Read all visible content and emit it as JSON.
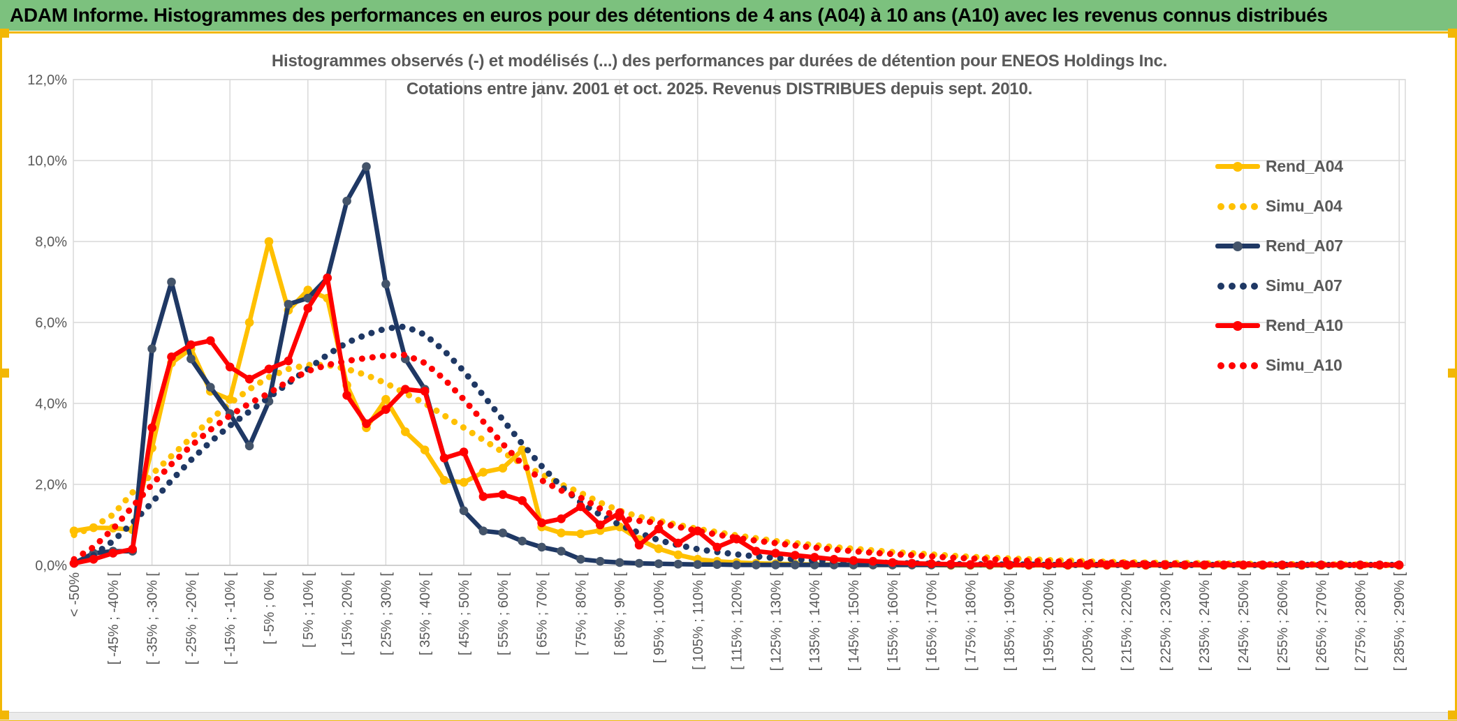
{
  "banner": {
    "title": "ADAM Informe. Histogrammes des performances en euros pour des détentions de 4 ans (A04) à 10 ans (A10) avec les revenus connus distribués"
  },
  "colors": {
    "banner_bg": "#7CC17E",
    "selection_gold": "#F2B705",
    "grid": "#D9D9D9",
    "axis": "#C6C6C6",
    "text_gray": "#595959",
    "strip": "#EBEBEB"
  },
  "chart_data": {
    "type": "line",
    "title_line1": "Histogrammes observés (-) et modélisés (...) des performances par durées de détention pour ENEOS Holdings Inc.",
    "title_line2": "Cotations entre janv. 2001 et oct. 2025. Revenus DISTRIBUES depuis sept. 2010.",
    "ylabel": "",
    "xlabel": "",
    "ylim": [
      0,
      12
    ],
    "grid": true,
    "legend_position": "right-inside",
    "y_tick_labels": [
      "0,0%",
      "2,0%",
      "4,0%",
      "6,0%",
      "8,0%",
      "10,0%",
      "12,0%"
    ],
    "bins_total": 69,
    "x_tick_every": 2,
    "x_tick_labels": [
      "< -50%",
      "[ -45% ; -40% [",
      "[ -35% ; -30% [",
      "[ -25% ; -20% [",
      "[ -15% ; -10% [",
      "[ -5% ; 0% [",
      "[ 5% ; 10% [",
      "[ 15% ; 20% [",
      "[ 25% ; 30% [",
      "[ 35% ; 40% [",
      "[ 45% ; 50% [",
      "[ 55% ; 60% [",
      "[ 65% ; 70% [",
      "[ 75% ; 80% [",
      "[ 85% ; 90% [",
      "[ 95% ; 100% [",
      "[ 105% ; 110% [",
      "[ 115% ; 120% [",
      "[ 125% ; 130% [",
      "[ 135% ; 140% [",
      "[ 145% ; 150% [",
      "[ 155% ; 160% [",
      "[ 165% ; 170% [",
      "[ 175% ; 180% [",
      "[ 185% ; 190% [",
      "[ 195% ; 200% [",
      "[ 205% ; 210% [",
      "[ 215% ; 220% [",
      "[ 225% ; 230% [",
      "[ 235% ; 240% [",
      "[ 245% ; 250% [",
      "[ 255% ; 260% [",
      "[ 265% ; 270% [",
      "[ 275% ; 280% [",
      "[ 285% ; 290% ["
    ],
    "series": [
      {
        "name": "Rend_A04",
        "style": "solid",
        "color": "#FFC000",
        "marker_color": "#FFC000",
        "values": [
          0.85,
          0.93,
          0.92,
          0.88,
          2.9,
          5.0,
          5.35,
          4.3,
          4.1,
          6.0,
          8.0,
          6.3,
          6.8,
          6.6,
          4.45,
          3.4,
          4.1,
          3.3,
          2.85,
          2.1,
          2.05,
          2.3,
          2.4,
          2.85,
          0.95,
          0.8,
          0.78,
          0.86,
          0.95,
          0.64,
          0.41,
          0.26,
          0.15,
          0.1,
          0.07,
          0.05,
          0.04,
          0.03,
          0.02,
          0.02,
          0.01,
          0.01,
          0.01,
          0.01,
          0.01,
          0,
          0,
          0,
          0,
          0,
          0,
          0,
          0,
          0,
          0,
          0,
          0,
          0,
          0,
          0,
          0,
          0,
          0,
          0,
          0,
          0,
          0,
          0,
          0
        ]
      },
      {
        "name": "Simu_A04",
        "style": "dotted",
        "color": "#FFC000",
        "marker_color": "#FFC000",
        "values": [
          0.75,
          0.95,
          1.25,
          1.8,
          2.25,
          2.7,
          3.15,
          3.6,
          4.0,
          4.35,
          4.65,
          4.85,
          4.95,
          4.95,
          4.85,
          4.7,
          4.5,
          4.25,
          4.0,
          3.7,
          3.4,
          3.1,
          2.8,
          2.5,
          2.25,
          2.0,
          1.79,
          1.55,
          1.35,
          1.2,
          1.1,
          1.0,
          0.9,
          0.82,
          0.74,
          0.67,
          0.6,
          0.55,
          0.5,
          0.45,
          0.41,
          0.37,
          0.33,
          0.3,
          0.27,
          0.24,
          0.21,
          0.19,
          0.17,
          0.15,
          0.13,
          0.12,
          0.1,
          0.09,
          0.08,
          0.07,
          0.06,
          0.06,
          0.05,
          0.05,
          0.04,
          0.04,
          0.03,
          0.03,
          0.02,
          0.02,
          0.02,
          0.01,
          0.01
        ]
      },
      {
        "name": "Rend_A07",
        "style": "solid",
        "color": "#1F3864",
        "marker_color": "#44546A",
        "values": [
          0.05,
          0.3,
          0.35,
          0.35,
          5.35,
          7.0,
          5.1,
          4.4,
          3.75,
          2.95,
          4.05,
          6.45,
          6.6,
          7.1,
          9.0,
          9.85,
          6.95,
          5.1,
          4.35,
          2.65,
          1.35,
          0.85,
          0.8,
          0.6,
          0.45,
          0.35,
          0.15,
          0.1,
          0.07,
          0.05,
          0.04,
          0.03,
          0.02,
          0.02,
          0.01,
          0.01,
          0.01,
          0.01,
          0.01,
          0.01,
          0.01,
          0.01,
          0.01,
          0.01,
          0.01,
          0.01,
          0.01,
          0.01,
          0.01,
          0.01,
          0.01,
          0.01,
          0.01,
          0.01,
          0.01,
          0.01,
          0.01,
          0.01,
          0.01,
          0.01,
          0.01,
          0.01,
          0.01,
          0.01,
          0.01,
          0.01,
          0.01,
          0.01,
          0.01
        ]
      },
      {
        "name": "Simu_A07",
        "style": "dotted",
        "color": "#1F3864",
        "marker_color": "#1F3864",
        "values": [
          0.05,
          0.25,
          0.6,
          1.05,
          1.55,
          2.1,
          2.6,
          3.05,
          3.45,
          3.8,
          4.15,
          4.5,
          4.85,
          5.2,
          5.5,
          5.7,
          5.85,
          5.9,
          5.7,
          5.3,
          4.8,
          4.2,
          3.6,
          3.0,
          2.45,
          1.95,
          1.55,
          1.25,
          1.0,
          0.8,
          0.62,
          0.5,
          0.4,
          0.33,
          0.27,
          0.22,
          0.18,
          0.15,
          0.12,
          0.1,
          0.08,
          0.07,
          0.06,
          0.05,
          0.04,
          0.03,
          0.03,
          0.02,
          0.02,
          0.02,
          0.01,
          0.01,
          0.01,
          0.01,
          0.01,
          0.01,
          0.01,
          0.01,
          0.01,
          0.01,
          0.01,
          0.01,
          0.01,
          0.01,
          0.01,
          0.01,
          0.01,
          0.01,
          0.01
        ]
      },
      {
        "name": "Rend_A10",
        "style": "solid",
        "color": "#FF0000",
        "marker_color": "#FF0000",
        "values": [
          0.05,
          0.15,
          0.3,
          0.4,
          3.4,
          5.15,
          5.45,
          5.55,
          4.9,
          4.6,
          4.85,
          5.05,
          6.35,
          7.1,
          4.2,
          3.5,
          3.85,
          4.35,
          4.3,
          2.65,
          2.8,
          1.7,
          1.75,
          1.6,
          1.05,
          1.15,
          1.45,
          1.0,
          1.3,
          0.5,
          0.9,
          0.55,
          0.85,
          0.45,
          0.65,
          0.35,
          0.3,
          0.25,
          0.2,
          0.15,
          0.12,
          0.1,
          0.07,
          0.05,
          0.04,
          0.03,
          0.02,
          0.02,
          0.01,
          0.01,
          0.01,
          0.01,
          0.01,
          0.01,
          0.01,
          0.01,
          0.01,
          0.01,
          0.01,
          0.01,
          0.01,
          0.01,
          0.01,
          0.01,
          0.01,
          0.01,
          0.01,
          0.01,
          0.01
        ]
      },
      {
        "name": "Simu_A10",
        "style": "dotted",
        "color": "#FF0000",
        "marker_color": "#FF0000",
        "values": [
          0.15,
          0.45,
          0.9,
          1.45,
          2.0,
          2.5,
          2.95,
          3.35,
          3.7,
          4.0,
          4.25,
          4.55,
          4.8,
          4.95,
          5.05,
          5.12,
          5.18,
          5.2,
          5.0,
          4.6,
          4.1,
          3.55,
          3.0,
          2.5,
          2.1,
          1.85,
          1.67,
          1.4,
          1.16,
          1.1,
          1.05,
          0.95,
          0.85,
          0.76,
          0.68,
          0.61,
          0.55,
          0.49,
          0.44,
          0.39,
          0.35,
          0.31,
          0.28,
          0.25,
          0.22,
          0.19,
          0.17,
          0.15,
          0.13,
          0.11,
          0.1,
          0.09,
          0.08,
          0.07,
          0.06,
          0.05,
          0.05,
          0.04,
          0.04,
          0.03,
          0.03,
          0.02,
          0.02,
          0.02,
          0.02,
          0.01,
          0.01,
          0.01,
          0.01
        ]
      }
    ]
  }
}
